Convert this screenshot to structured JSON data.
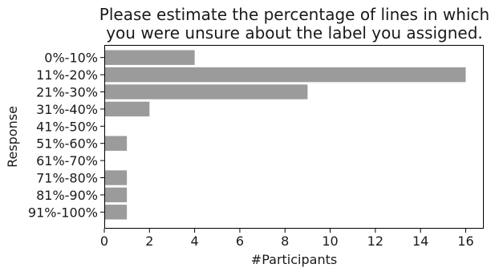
{
  "chart_data": {
    "type": "bar",
    "orientation": "horizontal",
    "title": "Please estimate the percentage of lines in which you were unsure about the label you assigned.",
    "title_lines": [
      "Please estimate the percentage of lines in which",
      "you were unsure about the label you assigned."
    ],
    "xlabel": "#Participants",
    "ylabel": "Response",
    "categories": [
      "0%-10%",
      "11%-20%",
      "21%-30%",
      "31%-40%",
      "41%-50%",
      "51%-60%",
      "61%-70%",
      "71%-80%",
      "81%-90%",
      "91%-100%"
    ],
    "values": [
      4,
      16,
      9,
      2,
      0,
      1,
      0,
      1,
      1,
      1
    ],
    "xlim": [
      0,
      16.8
    ],
    "xticks": [
      0,
      2,
      4,
      6,
      8,
      10,
      12,
      14,
      16
    ],
    "grid": false,
    "bar_color": "#9b9b9b"
  }
}
